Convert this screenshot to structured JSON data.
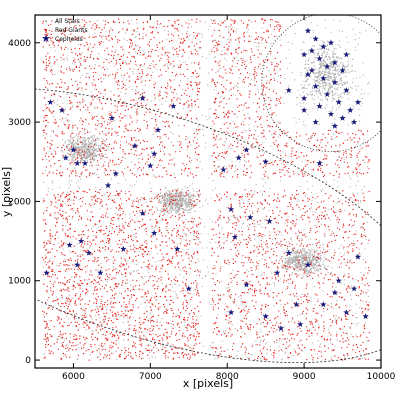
{
  "chart_data": {
    "type": "scatter",
    "xlabel": "x [pixels]",
    "ylabel": "y [pixels]",
    "xlim": [
      5500,
      10000
    ],
    "ylim": [
      -100,
      4350
    ],
    "x_ticks": [
      6000,
      7000,
      8000,
      9000,
      10000
    ],
    "y_ticks": [
      0,
      1000,
      2000,
      3000,
      4000
    ],
    "grid": false,
    "legend_position": "top-left",
    "series": [
      {
        "name": "All Stars",
        "style": "dots",
        "color": "#b0b0b0",
        "extent_x": [
          5600,
          9850
        ],
        "extent_y": [
          0,
          4300
        ],
        "dense_regions": [
          {
            "x": [
              8900,
              9700
            ],
            "y": [
              3100,
              4100
            ]
          },
          {
            "x": [
              7000,
              7700
            ],
            "y": [
              1800,
              2200
            ]
          },
          {
            "x": [
              8600,
              9400
            ],
            "y": [
              1000,
              1500
            ]
          },
          {
            "x": [
              5800,
              6500
            ],
            "y": [
              2400,
              2900
            ]
          }
        ]
      },
      {
        "name": "Red Giants",
        "style": "dots",
        "color": "#e8120c",
        "chip_x_ranges": [
          [
            5600,
            7650
          ],
          [
            7800,
            9850
          ]
        ],
        "chip_y_ranges": [
          [
            0,
            2150
          ],
          [
            2300,
            4300
          ]
        ],
        "gaps_x": [
          7650,
          7800
        ],
        "gaps_y": [
          2150,
          2300
        ]
      },
      {
        "name": "Cepheids",
        "style": "star-markers",
        "color": "#1c1c7a",
        "points": [
          [
            9050,
            4150
          ],
          [
            9150,
            4050
          ],
          [
            9250,
            3950
          ],
          [
            9350,
            4000
          ],
          [
            9100,
            3900
          ],
          [
            9000,
            3850
          ],
          [
            9200,
            3800
          ],
          [
            9400,
            3750
          ],
          [
            9300,
            3700
          ],
          [
            9100,
            3650
          ],
          [
            9500,
            3650
          ],
          [
            9050,
            3600
          ],
          [
            9250,
            3550
          ],
          [
            9400,
            3500
          ],
          [
            9150,
            3450
          ],
          [
            9550,
            3400
          ],
          [
            9300,
            3350
          ],
          [
            9000,
            3300
          ],
          [
            9450,
            3250
          ],
          [
            9200,
            3200
          ],
          [
            9600,
            3150
          ],
          [
            9350,
            3100
          ],
          [
            9500,
            3050
          ],
          [
            9150,
            3000
          ],
          [
            9400,
            2950
          ],
          [
            9700,
            3250
          ],
          [
            9650,
            3000
          ],
          [
            8800,
            3400
          ],
          [
            9550,
            3850
          ],
          [
            9000,
            3150
          ],
          [
            5700,
            3250
          ],
          [
            5850,
            3150
          ],
          [
            6500,
            3050
          ],
          [
            6900,
            3300
          ],
          [
            7300,
            3200
          ],
          [
            6000,
            2650
          ],
          [
            5900,
            2550
          ],
          [
            6800,
            2700
          ],
          [
            7050,
            2600
          ],
          [
            7100,
            2900
          ],
          [
            6050,
            2480
          ],
          [
            7000,
            2450
          ],
          [
            6550,
            2350
          ],
          [
            6150,
            2480
          ],
          [
            8250,
            2650
          ],
          [
            8150,
            2550
          ],
          [
            8500,
            2500
          ],
          [
            7950,
            2400
          ],
          [
            9200,
            2480
          ],
          [
            5950,
            1450
          ],
          [
            6200,
            1350
          ],
          [
            6050,
            1200
          ],
          [
            6350,
            1100
          ],
          [
            7050,
            1600
          ],
          [
            6650,
            1400
          ],
          [
            6100,
            1500
          ],
          [
            6450,
            2200
          ],
          [
            6900,
            1850
          ],
          [
            7350,
            1400
          ],
          [
            5650,
            1100
          ],
          [
            7500,
            900
          ],
          [
            8050,
            1900
          ],
          [
            8300,
            1800
          ],
          [
            8550,
            1750
          ],
          [
            8100,
            1550
          ],
          [
            8800,
            1350
          ],
          [
            8650,
            1100
          ],
          [
            9050,
            1200
          ],
          [
            9400,
            850
          ],
          [
            9250,
            700
          ],
          [
            9550,
            600
          ],
          [
            9650,
            900
          ],
          [
            9450,
            1000
          ],
          [
            8900,
            700
          ],
          [
            8500,
            550
          ],
          [
            8050,
            600
          ],
          [
            8250,
            950
          ],
          [
            9800,
            550
          ],
          [
            9700,
            1300
          ],
          [
            8950,
            450
          ],
          [
            8700,
            400
          ]
        ]
      }
    ],
    "overlays": [
      {
        "shape": "ellipse",
        "style": "dashed",
        "center": [
          7000,
          1700
        ],
        "radius_x": [
          3700,
          3900
        ],
        "radius_y": [
          1400,
          1500
        ],
        "angle_deg": -18
      },
      {
        "shape": "circle",
        "style": "dotted",
        "center": [
          9350,
          3500
        ],
        "radius": 900
      }
    ]
  }
}
